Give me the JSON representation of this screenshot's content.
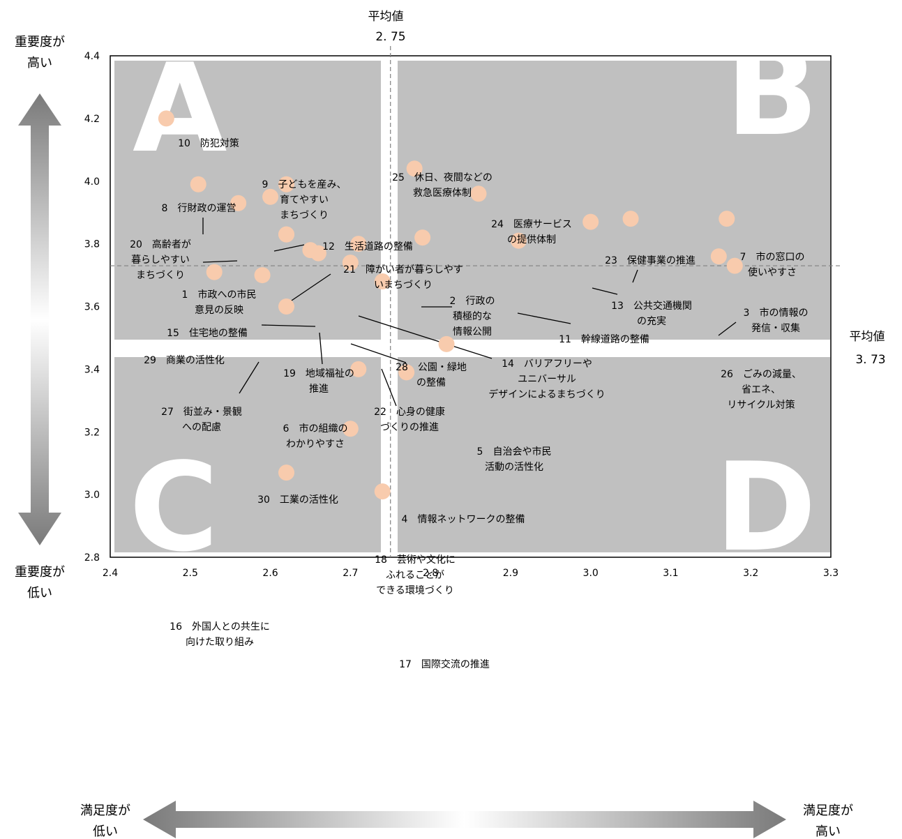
{
  "chart_data": {
    "type": "scatter",
    "xlim": [
      2.4,
      3.3
    ],
    "ylim": [
      2.8,
      4.4
    ],
    "xticks": [
      "2.4",
      "2.5",
      "2.6",
      "2.7",
      "2.8",
      "2.9",
      "3.0",
      "3.1",
      "3.2",
      "3.3"
    ],
    "yticks": [
      "2.8",
      "3.0",
      "3.2",
      "3.4",
      "3.6",
      "3.8",
      "4.0",
      "4.2",
      "4.4"
    ],
    "x_label": {
      "low": [
        "満足度が",
        "低い"
      ],
      "high": [
        "満足度が",
        "高い"
      ]
    },
    "y_label": {
      "high": [
        "重要度が",
        "高い"
      ],
      "low": [
        "重要度が",
        "低い"
      ]
    },
    "x_mean": {
      "label": "平均値",
      "value_text": "2. 75",
      "value": 2.75
    },
    "y_mean": {
      "label": "平均値",
      "value_text": "3. 73",
      "value": 3.73
    },
    "quadrants": [
      "A",
      "B",
      "C",
      "D"
    ],
    "grid": false,
    "points": [
      {
        "id": 1,
        "x": 2.62,
        "y": 3.83,
        "label": [
          "1　市政への市民",
          "意見の反映"
        ]
      },
      {
        "id": 2,
        "x": 2.79,
        "y": 3.82,
        "label": [
          "2　行政の",
          "積極的な",
          "情報公開"
        ]
      },
      {
        "id": 3,
        "x": 3.16,
        "y": 3.76,
        "label": [
          "3　市の情報の",
          "発信・収集"
        ]
      },
      {
        "id": 4,
        "x": 2.77,
        "y": 3.39,
        "label": [
          "4　情報ネットワークの整備"
        ]
      },
      {
        "id": 5,
        "x": 2.82,
        "y": 3.48,
        "label": [
          "5　自治会や市民",
          "活動の活性化"
        ]
      },
      {
        "id": 6,
        "x": 2.62,
        "y": 3.6,
        "label": [
          "6　市の組織の",
          "わかりやすさ"
        ]
      },
      {
        "id": 7,
        "x": 3.17,
        "y": 3.88,
        "label": [
          "7　市の窓口の",
          "使いやすさ"
        ]
      },
      {
        "id": 8,
        "x": 2.51,
        "y": 3.99,
        "label": [
          "8　行財政の運営"
        ]
      },
      {
        "id": 9,
        "x": 2.62,
        "y": 3.99,
        "label": [
          "9　子どもを産み、",
          "育てやすい",
          "まちづくり"
        ]
      },
      {
        "id": 10,
        "x": 2.47,
        "y": 4.2,
        "label": [
          "10　防犯対策"
        ]
      },
      {
        "id": 11,
        "x": 2.91,
        "y": 3.81,
        "label": [
          "11　幹線道路の整備"
        ]
      },
      {
        "id": 12,
        "x": 2.6,
        "y": 3.95,
        "label": [
          "12　生活道路の整備"
        ]
      },
      {
        "id": 13,
        "x": 3.0,
        "y": 3.87,
        "label": [
          "13　公共交通機関",
          "の充実"
        ]
      },
      {
        "id": 14,
        "x": 2.71,
        "y": 3.8,
        "label": [
          "14　バリアフリーや",
          "ユニバーサル",
          "デザインによるまちづくり"
        ]
      },
      {
        "id": 15,
        "x": 2.65,
        "y": 3.78,
        "label": [
          "15　住宅地の整備"
        ]
      },
      {
        "id": 16,
        "x": 2.62,
        "y": 3.07,
        "label": [
          "16　外国人との共生に",
          "向けた取り組み"
        ]
      },
      {
        "id": 17,
        "x": 2.74,
        "y": 3.01,
        "label": [
          "17　国際交流の推進"
        ]
      },
      {
        "id": 18,
        "x": 2.7,
        "y": 3.21,
        "label": [
          "18　芸術や文化に",
          "ふれることが",
          "できる環境づくり"
        ]
      },
      {
        "id": 19,
        "x": 2.66,
        "y": 3.77,
        "label": [
          "19　地域福祉の",
          "推進"
        ]
      },
      {
        "id": 20,
        "x": 2.56,
        "y": 3.93,
        "label": [
          "20　高齢者が",
          "暮らしやすい",
          "まちづくり"
        ]
      },
      {
        "id": 21,
        "x": 2.62,
        "y": 3.83,
        "label": [
          "21　障がい者が暮らしやす",
          "いまちづくり"
        ]
      },
      {
        "id": 22,
        "x": 2.74,
        "y": 3.68,
        "label": [
          "22　心身の健康",
          "づくりの推進"
        ]
      },
      {
        "id": 23,
        "x": 3.05,
        "y": 3.88,
        "label": [
          "23　保健事業の推進"
        ]
      },
      {
        "id": 24,
        "x": 2.86,
        "y": 3.96,
        "label": [
          "24　医療サービス",
          "の提供体制"
        ]
      },
      {
        "id": 25,
        "x": 2.78,
        "y": 4.04,
        "label": [
          "25　休日、夜間などの",
          "救急医療体制"
        ]
      },
      {
        "id": 26,
        "x": 3.18,
        "y": 3.73,
        "label": [
          "26　ごみの減量、",
          "省エネ、",
          "リサイクル対策"
        ]
      },
      {
        "id": 27,
        "x": 2.59,
        "y": 3.7,
        "label": [
          "27　街並み・景観",
          "への配慮"
        ]
      },
      {
        "id": 28,
        "x": 2.7,
        "y": 3.74,
        "label": [
          "28　公園・緑地",
          "の整備"
        ]
      },
      {
        "id": 29,
        "x": 2.53,
        "y": 3.71,
        "label": [
          "29　商業の活性化"
        ]
      },
      {
        "id": 30,
        "x": 2.71,
        "y": 3.4,
        "label": [
          "30　工業の活性化"
        ]
      }
    ]
  },
  "colors": {
    "quadrant_fill": "#c0c0c0",
    "point_fill": "#f8cbad",
    "text": "#000000",
    "mean_line": "#808080",
    "arrow_dark": "#808080",
    "arrow_light": "#ffffff"
  }
}
